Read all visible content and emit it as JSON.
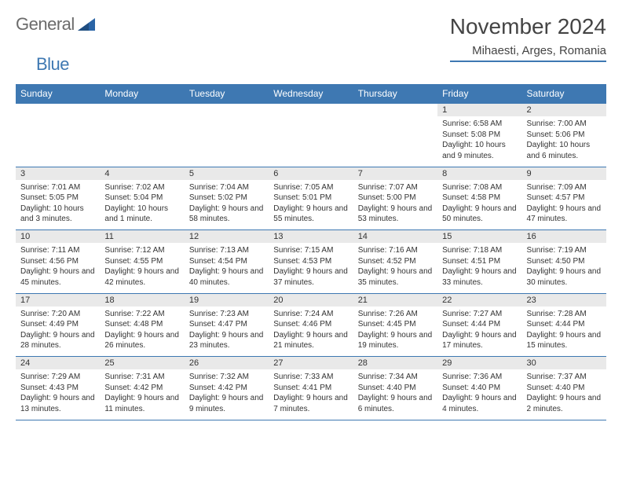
{
  "logo": {
    "word1": "General",
    "word2": "Blue",
    "shape_color": "#2a64a6"
  },
  "header": {
    "month_title": "November 2024",
    "location": "Mihaesti, Arges, Romania"
  },
  "theme": {
    "header_bg": "#3e78b2",
    "header_text": "#ffffff",
    "daynum_bg": "#e9e9e9",
    "border": "#3e78b2",
    "text": "#333333",
    "page_bg": "#ffffff"
  },
  "day_names": [
    "Sunday",
    "Monday",
    "Tuesday",
    "Wednesday",
    "Thursday",
    "Friday",
    "Saturday"
  ],
  "weeks": [
    [
      null,
      null,
      null,
      null,
      null,
      {
        "d": "1",
        "sunrise": "Sunrise: 6:58 AM",
        "sunset": "Sunset: 5:08 PM",
        "daylight": "Daylight: 10 hours and 9 minutes."
      },
      {
        "d": "2",
        "sunrise": "Sunrise: 7:00 AM",
        "sunset": "Sunset: 5:06 PM",
        "daylight": "Daylight: 10 hours and 6 minutes."
      }
    ],
    [
      {
        "d": "3",
        "sunrise": "Sunrise: 7:01 AM",
        "sunset": "Sunset: 5:05 PM",
        "daylight": "Daylight: 10 hours and 3 minutes."
      },
      {
        "d": "4",
        "sunrise": "Sunrise: 7:02 AM",
        "sunset": "Sunset: 5:04 PM",
        "daylight": "Daylight: 10 hours and 1 minute."
      },
      {
        "d": "5",
        "sunrise": "Sunrise: 7:04 AM",
        "sunset": "Sunset: 5:02 PM",
        "daylight": "Daylight: 9 hours and 58 minutes."
      },
      {
        "d": "6",
        "sunrise": "Sunrise: 7:05 AM",
        "sunset": "Sunset: 5:01 PM",
        "daylight": "Daylight: 9 hours and 55 minutes."
      },
      {
        "d": "7",
        "sunrise": "Sunrise: 7:07 AM",
        "sunset": "Sunset: 5:00 PM",
        "daylight": "Daylight: 9 hours and 53 minutes."
      },
      {
        "d": "8",
        "sunrise": "Sunrise: 7:08 AM",
        "sunset": "Sunset: 4:58 PM",
        "daylight": "Daylight: 9 hours and 50 minutes."
      },
      {
        "d": "9",
        "sunrise": "Sunrise: 7:09 AM",
        "sunset": "Sunset: 4:57 PM",
        "daylight": "Daylight: 9 hours and 47 minutes."
      }
    ],
    [
      {
        "d": "10",
        "sunrise": "Sunrise: 7:11 AM",
        "sunset": "Sunset: 4:56 PM",
        "daylight": "Daylight: 9 hours and 45 minutes."
      },
      {
        "d": "11",
        "sunrise": "Sunrise: 7:12 AM",
        "sunset": "Sunset: 4:55 PM",
        "daylight": "Daylight: 9 hours and 42 minutes."
      },
      {
        "d": "12",
        "sunrise": "Sunrise: 7:13 AM",
        "sunset": "Sunset: 4:54 PM",
        "daylight": "Daylight: 9 hours and 40 minutes."
      },
      {
        "d": "13",
        "sunrise": "Sunrise: 7:15 AM",
        "sunset": "Sunset: 4:53 PM",
        "daylight": "Daylight: 9 hours and 37 minutes."
      },
      {
        "d": "14",
        "sunrise": "Sunrise: 7:16 AM",
        "sunset": "Sunset: 4:52 PM",
        "daylight": "Daylight: 9 hours and 35 minutes."
      },
      {
        "d": "15",
        "sunrise": "Sunrise: 7:18 AM",
        "sunset": "Sunset: 4:51 PM",
        "daylight": "Daylight: 9 hours and 33 minutes."
      },
      {
        "d": "16",
        "sunrise": "Sunrise: 7:19 AM",
        "sunset": "Sunset: 4:50 PM",
        "daylight": "Daylight: 9 hours and 30 minutes."
      }
    ],
    [
      {
        "d": "17",
        "sunrise": "Sunrise: 7:20 AM",
        "sunset": "Sunset: 4:49 PM",
        "daylight": "Daylight: 9 hours and 28 minutes."
      },
      {
        "d": "18",
        "sunrise": "Sunrise: 7:22 AM",
        "sunset": "Sunset: 4:48 PM",
        "daylight": "Daylight: 9 hours and 26 minutes."
      },
      {
        "d": "19",
        "sunrise": "Sunrise: 7:23 AM",
        "sunset": "Sunset: 4:47 PM",
        "daylight": "Daylight: 9 hours and 23 minutes."
      },
      {
        "d": "20",
        "sunrise": "Sunrise: 7:24 AM",
        "sunset": "Sunset: 4:46 PM",
        "daylight": "Daylight: 9 hours and 21 minutes."
      },
      {
        "d": "21",
        "sunrise": "Sunrise: 7:26 AM",
        "sunset": "Sunset: 4:45 PM",
        "daylight": "Daylight: 9 hours and 19 minutes."
      },
      {
        "d": "22",
        "sunrise": "Sunrise: 7:27 AM",
        "sunset": "Sunset: 4:44 PM",
        "daylight": "Daylight: 9 hours and 17 minutes."
      },
      {
        "d": "23",
        "sunrise": "Sunrise: 7:28 AM",
        "sunset": "Sunset: 4:44 PM",
        "daylight": "Daylight: 9 hours and 15 minutes."
      }
    ],
    [
      {
        "d": "24",
        "sunrise": "Sunrise: 7:29 AM",
        "sunset": "Sunset: 4:43 PM",
        "daylight": "Daylight: 9 hours and 13 minutes."
      },
      {
        "d": "25",
        "sunrise": "Sunrise: 7:31 AM",
        "sunset": "Sunset: 4:42 PM",
        "daylight": "Daylight: 9 hours and 11 minutes."
      },
      {
        "d": "26",
        "sunrise": "Sunrise: 7:32 AM",
        "sunset": "Sunset: 4:42 PM",
        "daylight": "Daylight: 9 hours and 9 minutes."
      },
      {
        "d": "27",
        "sunrise": "Sunrise: 7:33 AM",
        "sunset": "Sunset: 4:41 PM",
        "daylight": "Daylight: 9 hours and 7 minutes."
      },
      {
        "d": "28",
        "sunrise": "Sunrise: 7:34 AM",
        "sunset": "Sunset: 4:40 PM",
        "daylight": "Daylight: 9 hours and 6 minutes."
      },
      {
        "d": "29",
        "sunrise": "Sunrise: 7:36 AM",
        "sunset": "Sunset: 4:40 PM",
        "daylight": "Daylight: 9 hours and 4 minutes."
      },
      {
        "d": "30",
        "sunrise": "Sunrise: 7:37 AM",
        "sunset": "Sunset: 4:40 PM",
        "daylight": "Daylight: 9 hours and 2 minutes."
      }
    ]
  ]
}
